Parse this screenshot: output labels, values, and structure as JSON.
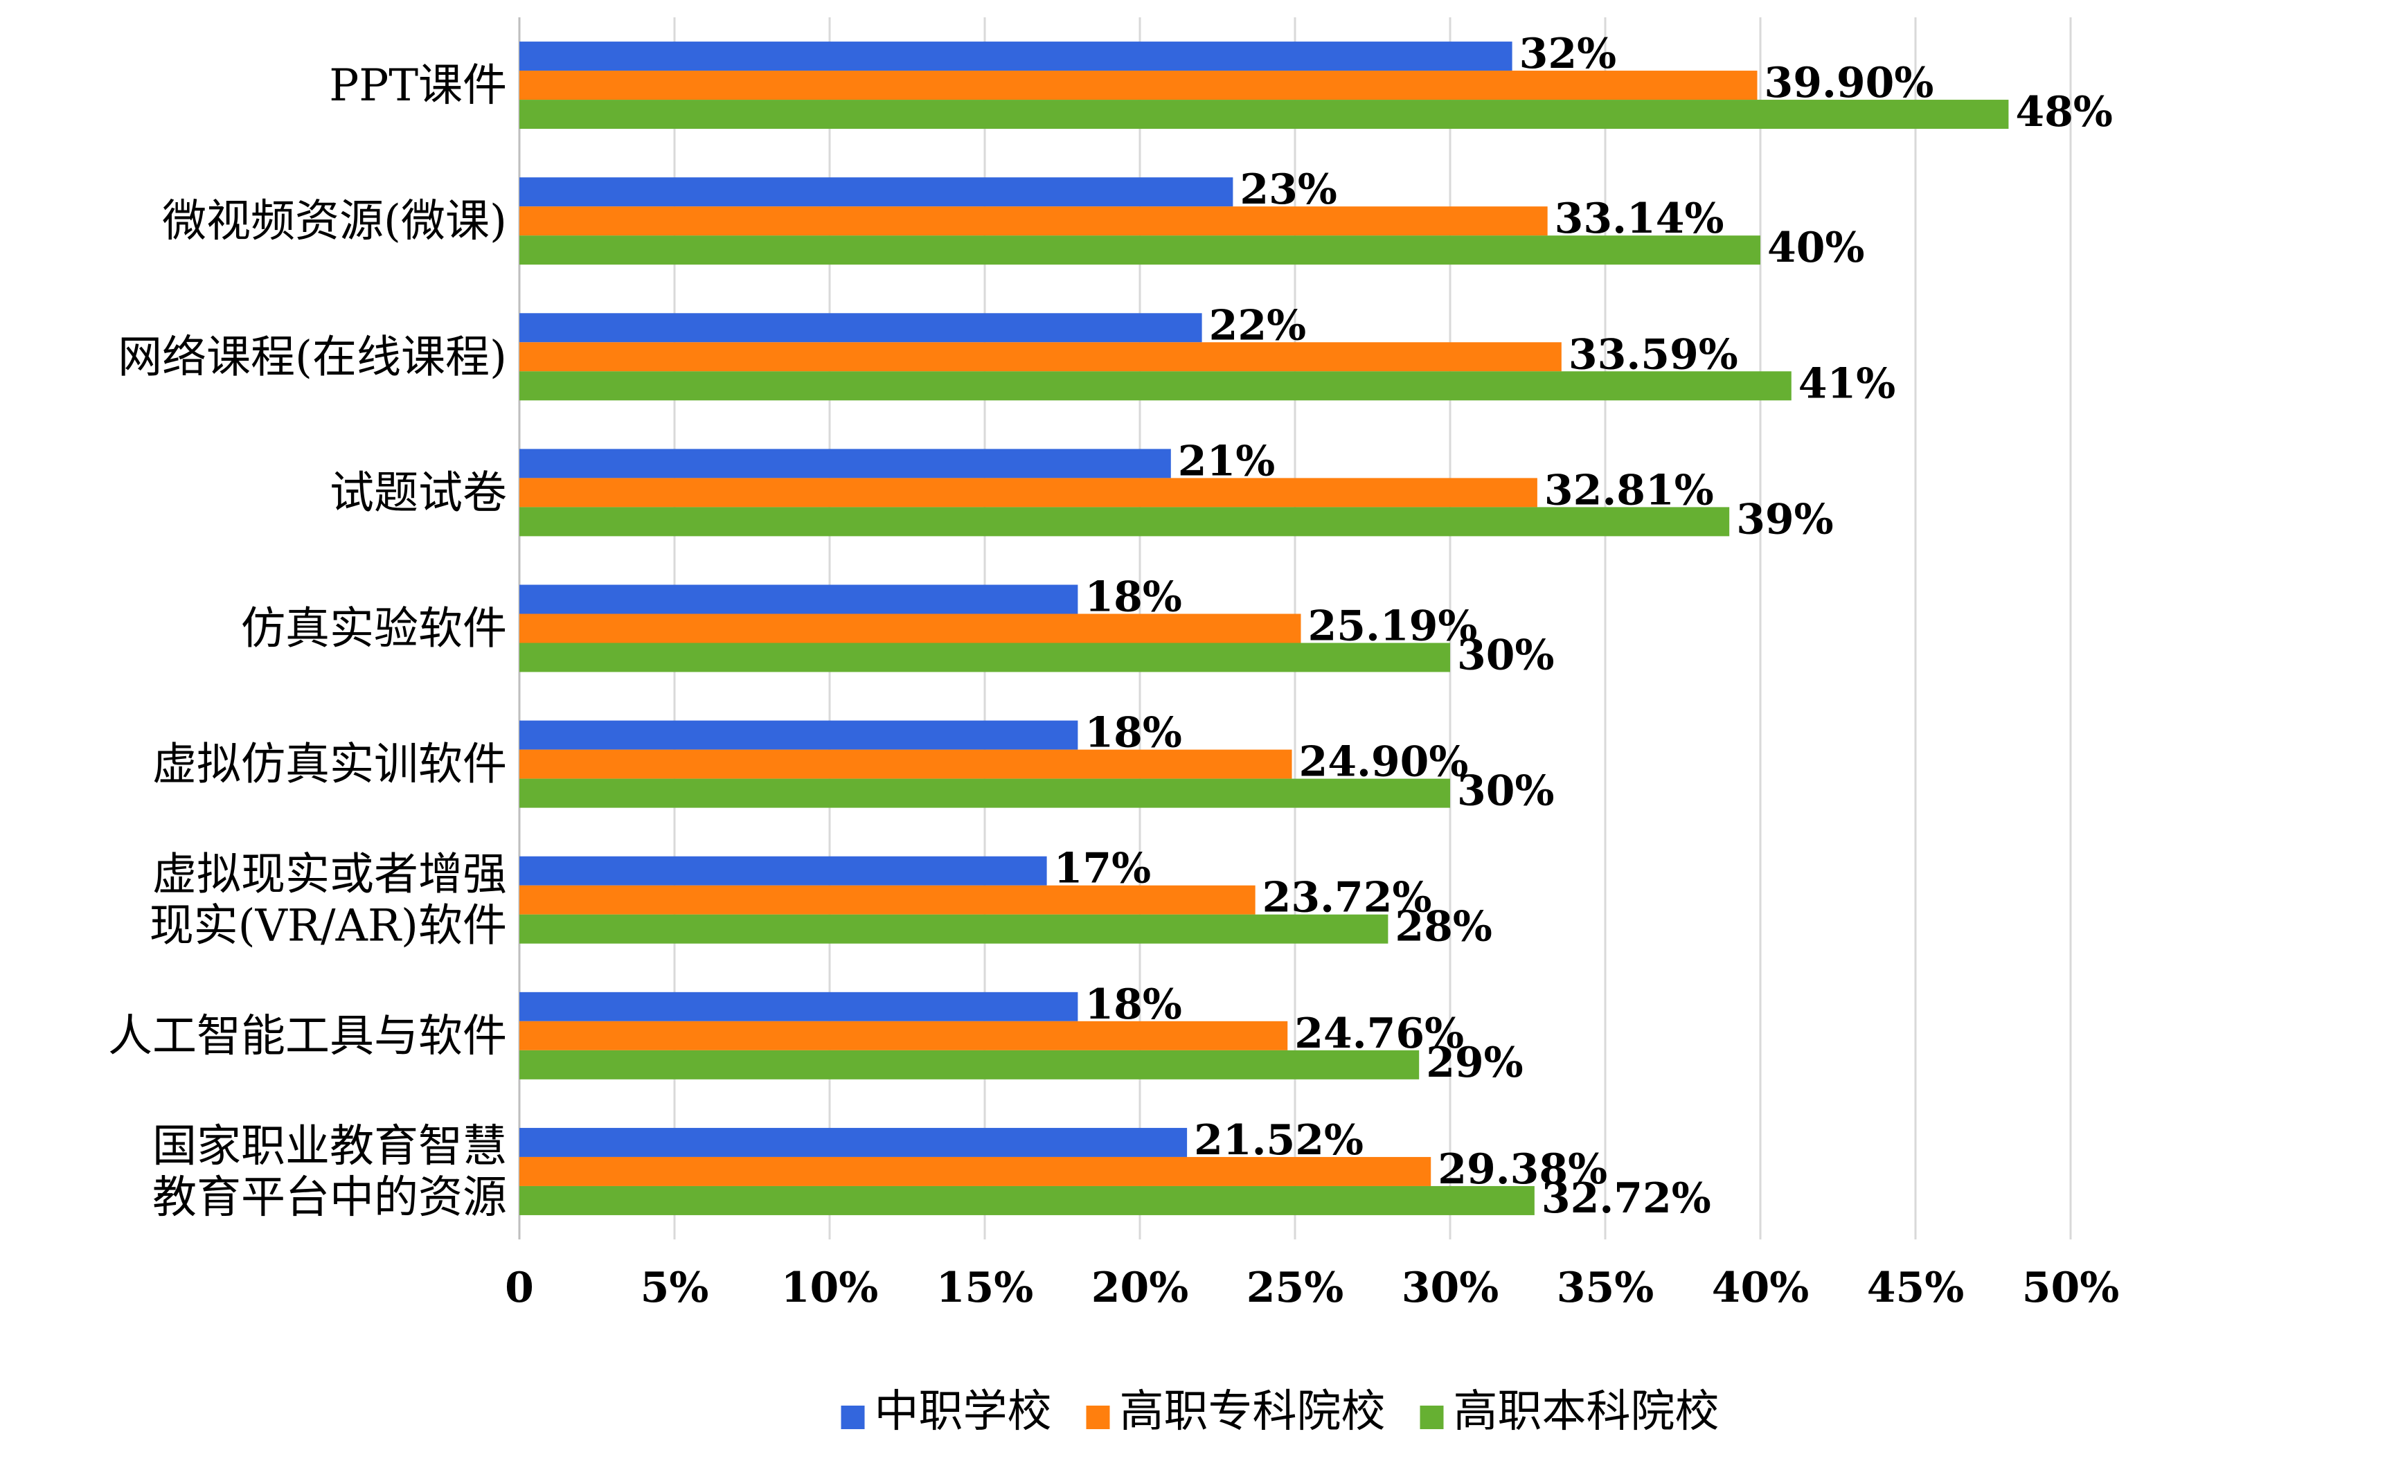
{
  "chart_data": {
    "type": "bar",
    "orientation": "horizontal",
    "title": "",
    "xlabel": "",
    "ylabel": "",
    "xlim": [
      0,
      50
    ],
    "x_ticks": [
      "0",
      "5%",
      "10%",
      "15%",
      "20%",
      "25%",
      "30%",
      "35%",
      "40%",
      "45%",
      "50%"
    ],
    "grid": true,
    "legend_position": "bottom",
    "categories": [
      [
        "PPT课件"
      ],
      [
        "微视频资源(微课)"
      ],
      [
        "网络课程(在线课程)"
      ],
      [
        "试题试卷"
      ],
      [
        "仿真实验软件"
      ],
      [
        "虚拟仿真实训软件"
      ],
      [
        "虚拟现实或者增强",
        "现实(VR/AR)软件"
      ],
      [
        "人工智能工具与软件"
      ],
      [
        "国家职业教育智慧",
        "教育平台中的资源"
      ]
    ],
    "series": [
      {
        "name": "中职学校",
        "color": "#3366dd",
        "values": [
          32,
          23,
          22,
          21,
          18,
          18,
          17,
          18,
          21.52
        ],
        "labels": [
          "32%",
          "23%",
          "22%",
          "21%",
          "18%",
          "18%",
          "17%",
          "18%",
          "21.52%"
        ]
      },
      {
        "name": "高职专科院校",
        "color": "#ff7f0e",
        "values": [
          39.9,
          33.14,
          33.59,
          32.81,
          25.19,
          24.9,
          23.72,
          24.76,
          29.38
        ],
        "labels": [
          "39.90%",
          "33.14%",
          "33.59%",
          "32.81%",
          "25.19%",
          "24.90%",
          "23.72%",
          "24.76%",
          "29.38%"
        ]
      },
      {
        "name": "高职本科院校",
        "color": "#66b032",
        "values": [
          48,
          40,
          41,
          39,
          30,
          30,
          28,
          29,
          32.72
        ],
        "labels": [
          "48%",
          "40%",
          "41%",
          "39%",
          "30%",
          "30%",
          "28%",
          "29%",
          "32.72%"
        ]
      }
    ]
  }
}
